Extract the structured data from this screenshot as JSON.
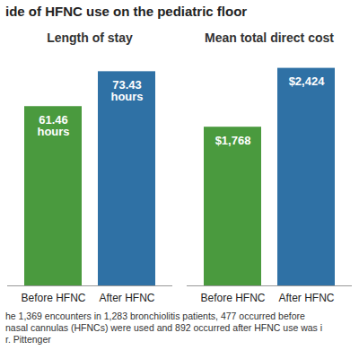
{
  "title": "ide of HFNC use on the pediatric floor",
  "caption": [
    "he 1,369 encounters in 1,283 bronchiolitis patients, 477 occurred before",
    "nasal cannulas (HFNCs) were used and 892 occurred after HFNC use was i",
    "r. Pittenger"
  ],
  "chart_data": [
    {
      "type": "bar",
      "title": "Length of stay",
      "categories": [
        "Before HFNC",
        "After HFNC"
      ],
      "values": [
        61.46,
        73.43
      ],
      "value_labels": [
        "61.46 hours",
        "73.43 hours"
      ],
      "colors": [
        "#4a9a3e",
        "#2f71a5"
      ],
      "ylim": [
        0,
        80
      ],
      "data_labels": true,
      "tick_labels": "x"
    },
    {
      "type": "bar",
      "title": "Mean total direct cost",
      "categories": [
        "Before HFNC",
        "After HFNC"
      ],
      "values": [
        1768,
        2424
      ],
      "value_labels": [
        "$1,768",
        "$2,424"
      ],
      "colors": [
        "#4a9a3e",
        "#2f71a5"
      ],
      "ylim": [
        0,
        2600
      ],
      "data_labels": true,
      "tick_labels": "x"
    }
  ]
}
